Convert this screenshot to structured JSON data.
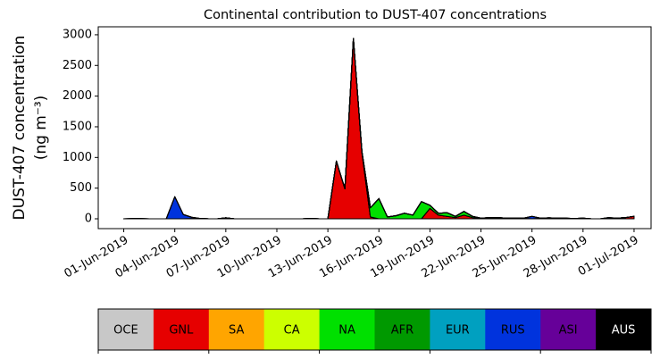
{
  "chart_data": {
    "type": "stacked_area",
    "title": "Continental contribution to DUST-407 concentrations",
    "ylabel": [
      "DUST-407 concentration",
      "(ng m⁻³)"
    ],
    "x": [
      "2019-06-01T00:00",
      "2019-06-01T12:00",
      "2019-06-02T00:00",
      "2019-06-02T12:00",
      "2019-06-03T00:00",
      "2019-06-03T12:00",
      "2019-06-04T00:00",
      "2019-06-04T12:00",
      "2019-06-05T00:00",
      "2019-06-05T12:00",
      "2019-06-06T00:00",
      "2019-06-06T12:00",
      "2019-06-07T00:00",
      "2019-06-07T12:00",
      "2019-06-08T00:00",
      "2019-06-08T12:00",
      "2019-06-09T00:00",
      "2019-06-09T12:00",
      "2019-06-10T00:00",
      "2019-06-10T12:00",
      "2019-06-11T00:00",
      "2019-06-11T12:00",
      "2019-06-12T00:00",
      "2019-06-12T12:00",
      "2019-06-13T00:00",
      "2019-06-13T12:00",
      "2019-06-14T00:00",
      "2019-06-14T12:00",
      "2019-06-15T00:00",
      "2019-06-15T12:00",
      "2019-06-16T00:00",
      "2019-06-16T12:00",
      "2019-06-17T00:00",
      "2019-06-17T12:00",
      "2019-06-18T00:00",
      "2019-06-18T12:00",
      "2019-06-19T00:00",
      "2019-06-19T12:00",
      "2019-06-20T00:00",
      "2019-06-20T12:00",
      "2019-06-21T00:00",
      "2019-06-21T12:00",
      "2019-06-22T00:00",
      "2019-06-22T12:00",
      "2019-06-23T00:00",
      "2019-06-23T12:00",
      "2019-06-24T00:00",
      "2019-06-24T12:00",
      "2019-06-25T00:00",
      "2019-06-25T12:00",
      "2019-06-26T00:00",
      "2019-06-26T12:00",
      "2019-06-27T00:00",
      "2019-06-27T12:00",
      "2019-06-28T00:00",
      "2019-06-28T12:00",
      "2019-06-29T00:00",
      "2019-06-29T12:00",
      "2019-06-30T00:00",
      "2019-06-30T12:00",
      "2019-07-01T00:00"
    ],
    "series": [
      {
        "name": "OCE",
        "color": "#c8c8c8",
        "values": [
          0,
          0,
          0,
          0,
          0,
          0,
          0,
          0,
          0,
          0,
          0,
          0,
          0,
          0,
          0,
          0,
          0,
          0,
          0,
          0,
          0,
          0,
          0,
          0,
          0,
          0,
          0,
          0,
          0,
          0,
          0,
          0,
          0,
          0,
          0,
          0,
          0,
          0,
          0,
          0,
          0,
          0,
          0,
          0,
          0,
          0,
          0,
          0,
          0,
          0,
          0,
          0,
          0,
          0,
          0,
          0,
          0,
          0,
          0,
          0,
          0
        ]
      },
      {
        "name": "GNL",
        "color": "#e60000",
        "values": [
          0,
          0,
          0,
          0,
          0,
          0,
          0,
          0,
          5,
          5,
          0,
          0,
          15,
          0,
          0,
          0,
          0,
          0,
          0,
          0,
          0,
          0,
          0,
          0,
          0,
          940,
          490,
          2940,
          1080,
          30,
          0,
          0,
          0,
          0,
          0,
          0,
          170,
          60,
          40,
          20,
          60,
          20,
          0,
          0,
          0,
          0,
          0,
          0,
          0,
          0,
          0,
          0,
          0,
          0,
          0,
          0,
          0,
          0,
          10,
          20,
          40
        ]
      },
      {
        "name": "SA",
        "color": "#ffa500",
        "values": [
          0,
          0,
          0,
          0,
          0,
          0,
          0,
          0,
          0,
          0,
          0,
          0,
          0,
          0,
          0,
          0,
          0,
          0,
          0,
          0,
          0,
          0,
          5,
          0,
          0,
          0,
          0,
          0,
          20,
          0,
          0,
          0,
          0,
          0,
          0,
          0,
          0,
          0,
          0,
          0,
          0,
          0,
          0,
          0,
          0,
          0,
          0,
          0,
          0,
          0,
          0,
          0,
          0,
          0,
          0,
          0,
          0,
          0,
          0,
          0,
          0
        ]
      },
      {
        "name": "CA",
        "color": "#ccff00",
        "values": [
          0,
          0,
          0,
          0,
          0,
          0,
          0,
          0,
          0,
          0,
          0,
          0,
          0,
          0,
          0,
          0,
          0,
          0,
          0,
          0,
          0,
          0,
          0,
          0,
          0,
          0,
          0,
          0,
          0,
          0,
          0,
          0,
          0,
          0,
          0,
          0,
          0,
          0,
          0,
          0,
          0,
          0,
          0,
          0,
          0,
          0,
          0,
          0,
          0,
          0,
          0,
          0,
          0,
          0,
          0,
          0,
          0,
          0,
          0,
          0,
          0
        ]
      },
      {
        "name": "NA",
        "color": "#00e000",
        "values": [
          0,
          0,
          0,
          0,
          0,
          0,
          0,
          0,
          0,
          0,
          0,
          0,
          0,
          0,
          0,
          0,
          0,
          0,
          0,
          0,
          0,
          0,
          0,
          0,
          0,
          0,
          0,
          0,
          0,
          150,
          330,
          30,
          50,
          90,
          60,
          280,
          50,
          30,
          60,
          20,
          60,
          20,
          10,
          20,
          20,
          10,
          10,
          10,
          0,
          10,
          15,
          10,
          10,
          5,
          10,
          0,
          0,
          0,
          0,
          0,
          0
        ]
      },
      {
        "name": "AFR",
        "color": "#009900",
        "values": [
          0,
          0,
          0,
          0,
          0,
          0,
          0,
          0,
          0,
          0,
          0,
          0,
          0,
          0,
          0,
          0,
          0,
          0,
          0,
          0,
          0,
          0,
          0,
          0,
          0,
          0,
          0,
          0,
          0,
          0,
          0,
          0,
          0,
          0,
          0,
          0,
          0,
          0,
          0,
          0,
          0,
          0,
          0,
          0,
          0,
          0,
          0,
          0,
          0,
          0,
          0,
          0,
          0,
          0,
          0,
          0,
          0,
          0,
          0,
          0,
          0
        ]
      },
      {
        "name": "EUR",
        "color": "#00a0c0",
        "values": [
          0,
          0,
          0,
          0,
          0,
          0,
          0,
          0,
          0,
          0,
          0,
          0,
          0,
          0,
          0,
          0,
          0,
          0,
          0,
          0,
          0,
          0,
          0,
          0,
          0,
          0,
          0,
          0,
          0,
          0,
          0,
          0,
          0,
          0,
          0,
          0,
          0,
          0,
          0,
          0,
          0,
          0,
          0,
          0,
          0,
          0,
          0,
          0,
          0,
          0,
          0,
          0,
          0,
          0,
          0,
          0,
          0,
          0,
          0,
          0,
          0
        ]
      },
      {
        "name": "RUS",
        "color": "#0033dd",
        "values": [
          0,
          5,
          5,
          0,
          0,
          0,
          360,
          70,
          20,
          0,
          0,
          0,
          0,
          0,
          0,
          0,
          0,
          0,
          0,
          0,
          0,
          0,
          0,
          0,
          0,
          0,
          0,
          0,
          0,
          0,
          0,
          0,
          0,
          0,
          0,
          0,
          0,
          0,
          0,
          0,
          0,
          0,
          0,
          0,
          0,
          0,
          0,
          0,
          40,
          0,
          0,
          0,
          0,
          0,
          0,
          0,
          0,
          20,
          0,
          0,
          0
        ]
      },
      {
        "name": "ASI",
        "color": "#660099",
        "values": [
          0,
          0,
          0,
          0,
          0,
          0,
          0,
          0,
          0,
          0,
          0,
          0,
          0,
          0,
          0,
          0,
          0,
          0,
          0,
          0,
          0,
          0,
          0,
          0,
          0,
          0,
          0,
          0,
          0,
          0,
          0,
          0,
          0,
          0,
          0,
          0,
          0,
          0,
          0,
          0,
          0,
          0,
          0,
          0,
          0,
          0,
          0,
          0,
          0,
          0,
          0,
          0,
          0,
          0,
          0,
          0,
          0,
          0,
          0,
          0,
          0
        ]
      },
      {
        "name": "AUS",
        "color": "#000000",
        "values": [
          0,
          0,
          0,
          0,
          0,
          0,
          0,
          0,
          0,
          0,
          0,
          0,
          0,
          0,
          0,
          0,
          0,
          0,
          0,
          0,
          0,
          0,
          0,
          0,
          0,
          0,
          0,
          0,
          0,
          0,
          0,
          0,
          0,
          0,
          0,
          0,
          0,
          0,
          0,
          0,
          0,
          0,
          0,
          0,
          0,
          0,
          0,
          0,
          0,
          0,
          0,
          0,
          0,
          0,
          0,
          0,
          0,
          0,
          0,
          0,
          0
        ]
      }
    ],
    "xlim": [
      "2019-05-30T12:00",
      "2019-07-02T00:00"
    ],
    "xticks": [
      {
        "value": "2019-06-01T00:00",
        "label": "01-Jun-2019"
      },
      {
        "value": "2019-06-04T00:00",
        "label": "04-Jun-2019"
      },
      {
        "value": "2019-06-07T00:00",
        "label": "07-Jun-2019"
      },
      {
        "value": "2019-06-10T00:00",
        "label": "10-Jun-2019"
      },
      {
        "value": "2019-06-13T00:00",
        "label": "13-Jun-2019"
      },
      {
        "value": "2019-06-16T00:00",
        "label": "16-Jun-2019"
      },
      {
        "value": "2019-06-19T00:00",
        "label": "19-Jun-2019"
      },
      {
        "value": "2019-06-22T00:00",
        "label": "22-Jun-2019"
      },
      {
        "value": "2019-06-25T00:00",
        "label": "25-Jun-2019"
      },
      {
        "value": "2019-06-28T00:00",
        "label": "28-Jun-2019"
      },
      {
        "value": "2019-07-01T00:00",
        "label": "01-Jul-2019"
      }
    ],
    "ylim": [
      -160,
      3130
    ],
    "yticks": [
      0,
      500,
      1000,
      1500,
      2000,
      2500,
      3000
    ]
  }
}
